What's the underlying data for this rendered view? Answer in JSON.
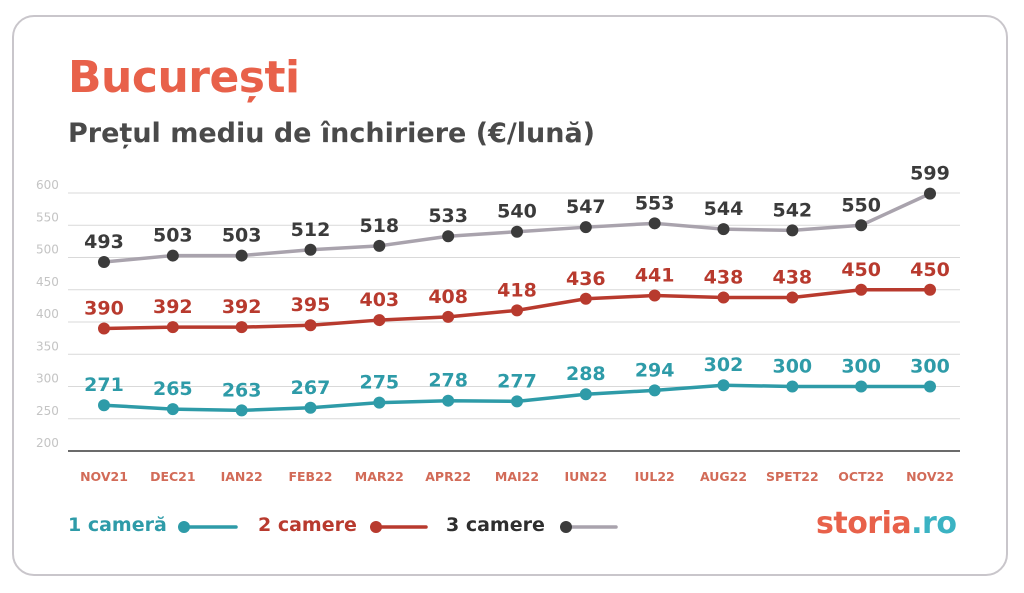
{
  "title": "București",
  "subtitle": "Prețul mediu de închiriere (€/lună)",
  "colors": {
    "title": "#e8614a",
    "series1": "#2e9ba8",
    "series2": "#b83a2e",
    "series3": "#a9a3ad",
    "marker3": "#3b3b3b",
    "grid": "#d9d9d9",
    "tick": "#d26b58",
    "ytick": "#c4c4c4"
  },
  "brand": {
    "part1": "storia",
    "part2": ".ro"
  },
  "chart_data": {
    "type": "line",
    "title": "Prețul mediu de închiriere (€/lună)",
    "categories": [
      "NOV21",
      "DEC21",
      "IAN22",
      "FEB22",
      "MAR22",
      "APR22",
      "MAI22",
      "IUN22",
      "IUL22",
      "AUG22",
      "SPET22",
      "OCT22",
      "NOV22"
    ],
    "yticks": [
      200,
      250,
      300,
      350,
      400,
      450,
      500,
      550,
      600
    ],
    "ylim": [
      200,
      600
    ],
    "grid": true,
    "legend_position": "bottom-left",
    "series": [
      {
        "name": "1 cameră",
        "values": [
          271,
          265,
          263,
          267,
          275,
          278,
          277,
          288,
          294,
          302,
          300,
          300,
          300
        ]
      },
      {
        "name": "2 camere",
        "values": [
          390,
          392,
          392,
          395,
          403,
          408,
          418,
          436,
          441,
          438,
          438,
          450,
          450
        ]
      },
      {
        "name": "3 camere",
        "values": [
          493,
          503,
          503,
          512,
          518,
          533,
          540,
          547,
          553,
          544,
          542,
          550,
          599
        ]
      }
    ]
  }
}
